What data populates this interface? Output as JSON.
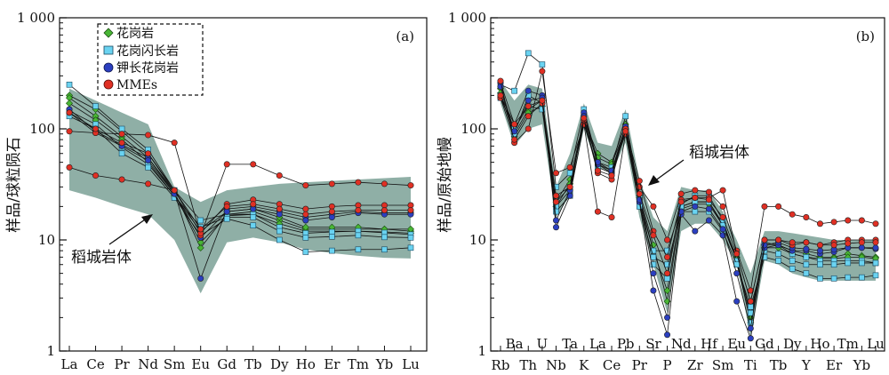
{
  "chart_data": [
    {
      "type": "line",
      "panel_label": "(a)",
      "ylabel": "样品/球粒陨石",
      "yscale": "log",
      "ylim": [
        1,
        1000
      ],
      "y_ticks": [
        1,
        10,
        100,
        1000
      ],
      "y_tick_labels": [
        "1",
        "10",
        "100",
        "1 000"
      ],
      "categories": [
        "La",
        "Ce",
        "Pr",
        "Nd",
        "Sm",
        "Eu",
        "Gd",
        "Tb",
        "Dy",
        "Ho",
        "Er",
        "Tm",
        "Yb",
        "Lu"
      ],
      "legend": {
        "placement": "top-left",
        "entries": [
          {
            "label": "花岗岩",
            "marker": "diamond",
            "color": "#49b635"
          },
          {
            "label": "花岗闪长岩",
            "marker": "square",
            "color": "#6ad3f1"
          },
          {
            "label": "钾长花岗岩",
            "marker": "circle",
            "color": "#2b3fc0"
          },
          {
            "label": "MMEs",
            "marker": "circle",
            "color": "#e03024"
          }
        ]
      },
      "annotation": {
        "text": "稻城岩体",
        "arrow": true
      },
      "shade_color": "#8fafa6",
      "band": {
        "upper": [
          230,
          180,
          140,
          110,
          30,
          22,
          28,
          30,
          32,
          33,
          34,
          35,
          36,
          37
        ],
        "lower": [
          28,
          24,
          20,
          17,
          10,
          3.3,
          9.5,
          10.5,
          9.5,
          8.2,
          7.6,
          7.2,
          6.9,
          6.8
        ]
      },
      "series": [
        {
          "group": "花岗岩",
          "values": [
            200,
            150,
            95,
            60,
            27,
            8.5,
            17,
            18,
            15,
            12.5,
            12.5,
            12.5,
            12.5,
            12
          ]
        },
        {
          "group": "花岗岩",
          "values": [
            190,
            130,
            85,
            55,
            26,
            9.5,
            16.5,
            17,
            14,
            12,
            12,
            12,
            11.8,
            11.5
          ]
        },
        {
          "group": "花岗岩",
          "values": [
            170,
            120,
            80,
            50,
            25,
            12,
            18,
            19,
            16,
            13,
            13,
            13,
            12.5,
            12.5
          ]
        },
        {
          "group": "花岗闪长岩",
          "values": [
            250,
            160,
            100,
            65,
            28,
            15,
            17,
            17,
            13,
            11.5,
            11.8,
            12,
            11.6,
            11.2
          ]
        },
        {
          "group": "花岗闪长岩",
          "values": [
            145,
            110,
            68,
            48,
            25,
            13,
            16,
            16,
            12,
            10.5,
            10.7,
            11,
            10.6,
            10.5
          ]
        },
        {
          "group": "花岗闪长岩",
          "values": [
            130,
            100,
            60,
            45,
            24,
            11,
            15.5,
            13.5,
            10,
            7.8,
            8,
            8.2,
            8.2,
            8.5
          ]
        },
        {
          "group": "钾长花岗岩",
          "values": [
            150,
            95,
            72,
            55,
            27,
            4.5,
            19,
            20,
            18,
            16,
            17,
            18,
            17.5,
            17.5
          ]
        },
        {
          "group": "钾长花岗岩",
          "values": [
            140,
            92,
            70,
            52,
            26,
            10.5,
            18,
            19,
            17,
            15,
            16,
            17.5,
            17,
            17
          ]
        },
        {
          "group": "MMEs",
          "values": [
            95,
            92,
            90,
            88,
            75,
            11,
            48,
            48,
            38,
            31,
            32,
            33,
            32,
            31
          ]
        },
        {
          "group": "MMEs",
          "values": [
            45,
            38,
            35,
            32,
            28,
            11.5,
            21,
            23,
            21,
            19,
            20,
            20.5,
            20.5,
            20.5
          ]
        },
        {
          "group": "MMEs",
          "values": [
            140,
            100,
            75,
            60,
            28,
            12.5,
            20,
            21,
            19,
            17,
            18,
            18.5,
            18.5,
            18.5
          ]
        }
      ]
    },
    {
      "type": "line",
      "panel_label": "(b)",
      "ylabel": "样品/原始地幔",
      "yscale": "log",
      "ylim": [
        1,
        1000
      ],
      "y_ticks": [
        1,
        10,
        100,
        1000
      ],
      "y_tick_labels": [
        "1",
        "10",
        "100",
        "1 000"
      ],
      "categories": [
        "Rb",
        "Ba",
        "Th",
        "U",
        "Nb",
        "Ta",
        "K",
        "La",
        "Ce",
        "Pb",
        "Pr",
        "Sr",
        "P",
        "Nd",
        "Zr",
        "Hf",
        "Sm",
        "Eu",
        "Ti",
        "Gd",
        "Tb",
        "Dy",
        "Y",
        "Ho",
        "Er",
        "Tm",
        "Yb",
        "Lu"
      ],
      "annotation": {
        "text": "稻城岩体",
        "arrow": true
      },
      "shade_color": "#8fafa6",
      "band": {
        "upper": [
          270,
          180,
          250,
          230,
          30,
          60,
          170,
          75,
          70,
          150,
          35,
          16,
          12,
          30,
          28,
          28,
          18,
          10,
          5,
          12,
          12,
          11.5,
          11,
          10.5,
          10,
          10,
          10,
          10
        ],
        "lower": [
          170,
          70,
          100,
          110,
          16,
          25,
          100,
          45,
          40,
          75,
          16,
          6,
          2.2,
          12,
          14,
          14,
          10,
          6,
          1.3,
          6.5,
          6,
          5,
          4.6,
          4.3,
          4.3,
          4.3,
          4.3,
          4.3
        ]
      },
      "series": [
        {
          "group": "花岗岩",
          "values": [
            230,
            90,
            150,
            180,
            22,
            35,
            120,
            60,
            50,
            110,
            25,
            9,
            2.8,
            20,
            22,
            22,
            14,
            7,
            2,
            9,
            9,
            8,
            7.5,
            7,
            7,
            7.5,
            7.2,
            7
          ]
        },
        {
          "group": "花岗岩",
          "values": [
            210,
            85,
            140,
            160,
            20,
            32,
            110,
            55,
            48,
            100,
            24,
            8,
            3.5,
            19,
            21,
            21,
            13.5,
            6.8,
            1.8,
            8.5,
            8.5,
            7.5,
            7,
            6.8,
            6.8,
            7,
            7,
            6.8
          ]
        },
        {
          "group": "花岗闪长岩",
          "values": [
            250,
            220,
            480,
            380,
            30,
            40,
            150,
            50,
            45,
            130,
            24,
            6,
            4.5,
            21,
            25,
            25,
            15,
            6.5,
            1.8,
            9.5,
            9,
            7.5,
            7,
            6.5,
            6.5,
            6.5,
            6.5,
            6.2
          ]
        },
        {
          "group": "花岗闪长岩",
          "values": [
            200,
            90,
            200,
            170,
            20,
            28,
            130,
            48,
            42,
            95,
            22,
            8,
            8,
            20,
            22,
            22,
            13.5,
            6.5,
            2.2,
            8,
            7.5,
            6.5,
            6,
            6,
            6,
            6.2,
            6.2,
            6.2
          ]
        },
        {
          "group": "花岗闪长岩",
          "values": [
            190,
            100,
            160,
            150,
            18,
            25,
            110,
            45,
            40,
            90,
            20,
            7,
            6,
            18,
            18,
            18,
            12,
            6,
            2.5,
            7,
            6.5,
            5.5,
            5,
            4.5,
            4.5,
            4.6,
            4.6,
            4.8
          ]
        },
        {
          "group": "钾长花岗岩",
          "values": [
            260,
            110,
            220,
            200,
            13,
            25,
            140,
            48,
            40,
            100,
            22,
            3.5,
            1.4,
            17,
            12,
            15,
            11,
            2.8,
            1.3,
            8.5,
            9,
            8,
            8,
            7.5,
            7.8,
            8.5,
            8.5,
            8.3
          ]
        },
        {
          "group": "钾长花岗岩",
          "values": [
            240,
            95,
            180,
            190,
            15,
            28,
            130,
            50,
            42,
            105,
            23,
            5,
            2,
            18,
            20,
            19,
            12.5,
            5,
            1.6,
            9,
            9.5,
            8.5,
            8.3,
            8,
            8.2,
            8.5,
            8.5,
            8.5
          ]
        },
        {
          "group": "MMEs",
          "values": [
            270,
            75,
            100,
            330,
            40,
            45,
            110,
            18,
            16,
            90,
            30,
            20,
            10,
            26,
            28,
            27,
            20,
            8,
            3.5,
            20,
            20,
            17,
            16,
            14,
            14.5,
            15,
            15,
            14
          ]
        },
        {
          "group": "MMEs",
          "values": [
            190,
            80,
            130,
            170,
            22,
            30,
            120,
            40,
            35,
            100,
            34,
            12,
            7,
            23,
            24,
            24,
            28,
            7.5,
            2.8,
            10,
            10,
            9,
            9.5,
            9,
            9.5,
            10,
            10,
            10
          ]
        },
        {
          "group": "MMEs",
          "values": [
            200,
            110,
            160,
            180,
            25,
            30,
            125,
            42,
            38,
            95,
            26,
            11,
            5,
            22,
            24,
            23,
            16,
            7.5,
            2.8,
            10,
            10,
            9.5,
            9.5,
            9,
            9,
            9.3,
            9.5,
            9.5
          ]
        }
      ]
    }
  ]
}
